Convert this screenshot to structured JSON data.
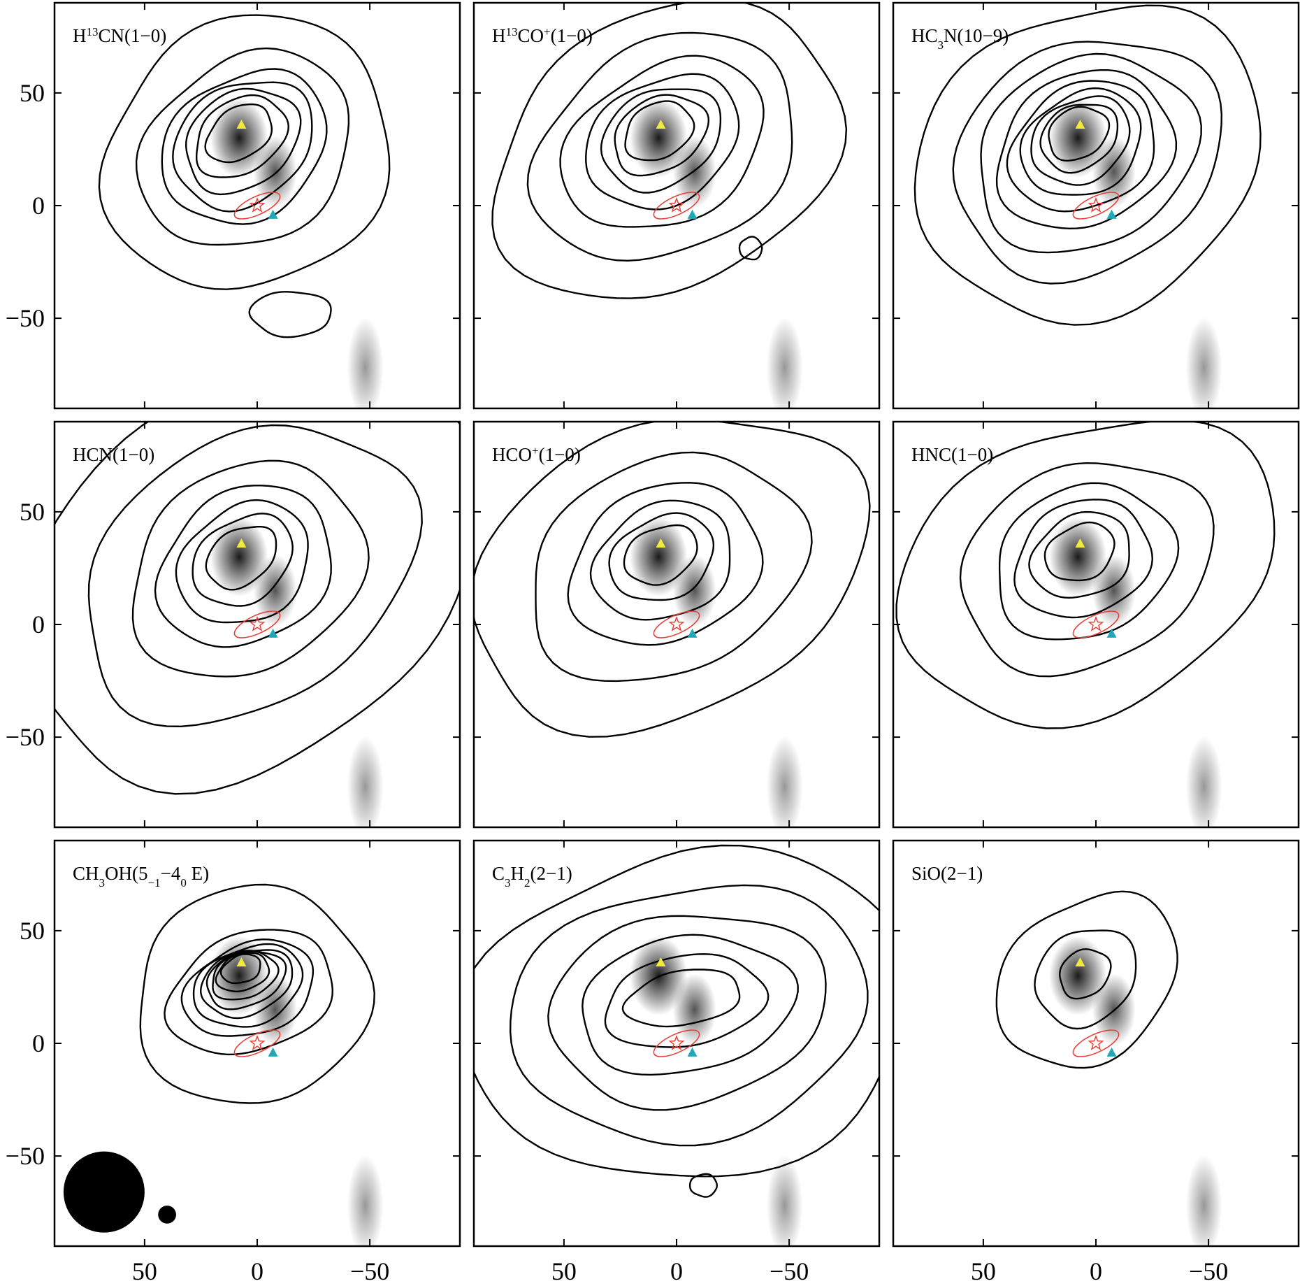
{
  "chart_data": {
    "type": "contour",
    "grid": false,
    "xlim": [
      90,
      -90
    ],
    "ylim": [
      -90,
      90
    ],
    "xticks": [
      50,
      0,
      -50
    ],
    "yticks": [
      50,
      0,
      -50
    ],
    "xtick_labels": [
      "50",
      "0",
      "−50"
    ],
    "ytick_labels": [
      "50",
      "0",
      "−50"
    ],
    "colors": {
      "contour": "#000000",
      "ellipse": "#e8413a",
      "star": "#e8413a",
      "triangle_yellow": "#f0ea3c",
      "triangle_cyan": "#1fa8b8",
      "background_min": "#9a9a9a",
      "background_max": "#1a1a1a"
    },
    "markers": {
      "triangle_yellow": [
        7,
        36
      ],
      "triangle_cyan": [
        -7,
        -4
      ],
      "star": [
        0,
        0
      ],
      "ellipse": {
        "center": [
          0,
          0
        ],
        "a": 11,
        "b": 4,
        "angle_deg": 25
      }
    },
    "greyscale_blobs": [
      {
        "x": 8,
        "y": 30,
        "sx": 8,
        "sy": 11,
        "level": 1.0
      },
      {
        "x": -8,
        "y": 15,
        "sx": 6,
        "sy": 10,
        "level": 0.75
      },
      {
        "x": -48,
        "y": -72,
        "sx": 5,
        "sy": 14,
        "level": 0.45
      }
    ],
    "panels": [
      {
        "label": [
          "H",
          {
            "sup": "13"
          },
          "CN(1−0)"
        ],
        "peak": [
          8,
          32
        ],
        "levels": [
          [
            11,
            16
          ],
          [
            16,
            22
          ],
          [
            21,
            27
          ],
          [
            26,
            33
          ],
          [
            31,
            39
          ],
          [
            40,
            50
          ],
          [
            58,
            66
          ]
        ],
        "tilt_deg": 55,
        "extras": [
          {
            "x": -15,
            "y": -48,
            "rx": 18,
            "ry": 10
          }
        ]
      },
      {
        "label": [
          "H",
          {
            "sup": "13"
          },
          "CO",
          {
            "sup": "+"
          },
          "(1−0)"
        ],
        "peak": [
          8,
          33
        ],
        "levels": [
          [
            12,
            16
          ],
          [
            16,
            22
          ],
          [
            21,
            28
          ],
          [
            27,
            36
          ],
          [
            34,
            48
          ],
          [
            46,
            62
          ],
          [
            60,
            82
          ]
        ],
        "tilt_deg": 60,
        "extras": [
          {
            "x": -33,
            "y": -19,
            "rx": 5,
            "ry": 5
          }
        ]
      },
      {
        "label": [
          "HC",
          {
            "sub": "3"
          },
          "N(10−9)"
        ],
        "peak": [
          8,
          32
        ],
        "levels": [
          [
            11,
            14
          ],
          [
            14,
            18
          ],
          [
            18,
            23
          ],
          [
            22,
            28
          ],
          [
            27,
            34
          ],
          [
            33,
            41
          ],
          [
            41,
            51
          ],
          [
            50,
            62
          ],
          [
            66,
            80
          ]
        ],
        "tilt_deg": 60,
        "extras": []
      },
      {
        "label": [
          "HCN(1−0)"
        ],
        "peak": [
          7,
          30
        ],
        "levels": [
          [
            12,
            17
          ],
          [
            18,
            24
          ],
          [
            25,
            31
          ],
          [
            33,
            41
          ],
          [
            44,
            55
          ],
          [
            58,
            80
          ],
          [
            80,
            110
          ]
        ],
        "tilt_deg": 55,
        "extras": []
      },
      {
        "label": [
          "HCO",
          {
            "sup": "+"
          },
          "(1−0)"
        ],
        "peak": [
          7,
          31
        ],
        "levels": [
          [
            12,
            17
          ],
          [
            18,
            24
          ],
          [
            25,
            32
          ],
          [
            34,
            44
          ],
          [
            47,
            64
          ],
          [
            64,
            92
          ]
        ],
        "tilt_deg": 65,
        "extras": []
      },
      {
        "label": [
          "HNC(1−0)"
        ],
        "peak": [
          7,
          32
        ],
        "levels": [
          [
            12,
            16
          ],
          [
            18,
            23
          ],
          [
            25,
            31
          ],
          [
            33,
            41
          ],
          [
            44,
            58
          ],
          [
            62,
            88
          ]
        ],
        "tilt_deg": 65,
        "extras": []
      },
      {
        "label": [
          "CH",
          {
            "sub": "3"
          },
          "OH(5",
          {
            "sub": "−1"
          },
          "−4",
          {
            "sub": "0"
          },
          " E)"
        ],
        "peak": [
          7,
          33
        ],
        "levels": [
          [
            6,
            9
          ],
          [
            8,
            12
          ],
          [
            10,
            15
          ],
          [
            12,
            18
          ],
          [
            14,
            21
          ],
          [
            17,
            25
          ],
          [
            20,
            30
          ],
          [
            26,
            38
          ],
          [
            48,
            52
          ]
        ],
        "tilt_deg": 70,
        "extras": []
      },
      {
        "label": [
          "C",
          {
            "sub": "3"
          },
          "H",
          {
            "sub": "2"
          },
          "(2−1)"
        ],
        "peak": [
          -3,
          20
        ],
        "levels": [
          [
            12,
            26
          ],
          [
            20,
            36
          ],
          [
            30,
            48
          ],
          [
            42,
            62
          ],
          [
            56,
            80
          ],
          [
            72,
            100
          ]
        ],
        "tilt_deg": 80,
        "extras": [
          {
            "x": -12,
            "y": -63,
            "rx": 6,
            "ry": 5
          }
        ]
      },
      {
        "label": [
          "SiO(2−1)"
        ],
        "peak": [
          5,
          31
        ],
        "levels": [
          [
            10,
            12
          ],
          [
            20,
            24
          ],
          [
            34,
            44
          ]
        ],
        "tilt_deg": 50,
        "extras": []
      }
    ]
  },
  "beams": [
    {
      "x": 68,
      "y": -66,
      "r": 18
    },
    {
      "x": 40,
      "y": -76,
      "r": 4
    }
  ]
}
